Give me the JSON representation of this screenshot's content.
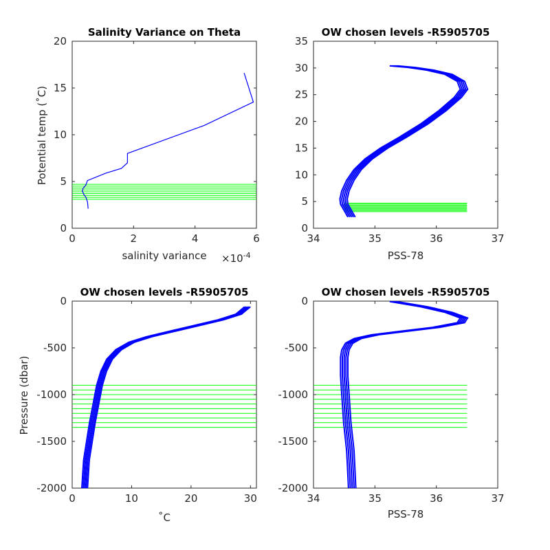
{
  "chart_data": [
    {
      "id": "salinity-variance",
      "type": "line",
      "title": "Salinity Variance on Theta",
      "xlabel": "salinity variance",
      "x_exponent": "×10",
      "x_exponent_power": "-4",
      "ylabel": "Potential temp (˚C)",
      "xlim": [
        0,
        6
      ],
      "ylim": [
        0,
        20
      ],
      "xticks": [
        0,
        2,
        4,
        6
      ],
      "yticks": [
        0,
        5,
        10,
        15,
        20
      ],
      "line_color": "#0000ff",
      "level_color": "#00ff00",
      "series": [
        {
          "x": [
            0.52,
            0.5,
            0.45,
            0.38,
            0.33,
            0.36,
            0.44,
            0.5,
            0.8,
            1.1,
            1.6,
            1.8,
            1.8,
            4.3,
            5.9,
            5.6
          ],
          "y": [
            2.1,
            2.8,
            3.3,
            3.6,
            4.0,
            4.3,
            4.6,
            5.1,
            5.5,
            5.9,
            6.4,
            7.0,
            8.0,
            11.0,
            13.5,
            16.6
          ]
        }
      ],
      "levels_y": [
        3.1,
        3.3,
        3.5,
        3.7,
        3.9,
        4.1,
        4.3,
        4.5,
        4.7
      ],
      "levels_x": [
        0,
        6
      ]
    },
    {
      "id": "theta-vs-salinity",
      "type": "line",
      "title": "OW chosen levels -R5905705",
      "xlabel": "PSS-78",
      "ylabel": "",
      "xlim": [
        34,
        37
      ],
      "ylim": [
        0,
        35
      ],
      "xticks": [
        34,
        35,
        36,
        37
      ],
      "yticks": [
        0,
        5,
        10,
        15,
        20,
        25,
        30,
        35
      ],
      "line_color": "#0000ff",
      "level_color": "#00ff00",
      "series": [
        {
          "x": [
            34.62,
            34.55,
            34.5,
            34.49,
            34.52,
            34.6,
            34.72,
            34.9,
            35.15,
            35.45,
            35.8,
            36.1,
            36.35,
            36.45,
            36.4,
            36.2,
            35.9,
            35.6,
            35.3
          ],
          "y": [
            2.1,
            3.5,
            4.5,
            5.5,
            7,
            9,
            11,
            13,
            15,
            17,
            19.5,
            22,
            24.5,
            26,
            27.5,
            28.8,
            29.6,
            30.1,
            30.4
          ]
        }
      ],
      "levels_y": [
        3.1,
        3.3,
        3.5,
        3.7,
        3.9,
        4.1,
        4.3,
        4.5,
        4.7
      ],
      "levels_x": [
        34.5,
        36.5
      ]
    },
    {
      "id": "pressure-vs-temperature",
      "type": "line",
      "title": "OW chosen levels -R5905705",
      "xlabel": "˚C",
      "ylabel": "Pressure (dbar)",
      "xlim": [
        0,
        31
      ],
      "ylim": [
        -2000,
        0
      ],
      "xticks": [
        0,
        10,
        20,
        30
      ],
      "yticks": [
        0,
        -500,
        -1000,
        -1500,
        -2000
      ],
      "line_color": "#0000ff",
      "level_color": "#00ff00",
      "series": [
        {
          "x": [
            2.1,
            2.4,
            2.9,
            3.4,
            4.0,
            4.6,
            5.3,
            6.3,
            7.8,
            10,
            13,
            17,
            21,
            25,
            28,
            29.5
          ],
          "y": [
            -2000,
            -1700,
            -1500,
            -1300,
            -1100,
            -900,
            -750,
            -620,
            -520,
            -440,
            -380,
            -320,
            -260,
            -200,
            -140,
            -60
          ]
        }
      ],
      "levels_y": [
        -900,
        -950,
        -1000,
        -1050,
        -1100,
        -1150,
        -1200,
        -1250,
        -1300,
        -1350
      ],
      "levels_x": [
        0,
        31
      ]
    },
    {
      "id": "pressure-vs-salinity",
      "type": "line",
      "title": "OW chosen levels -R5905705",
      "xlabel": "PSS-78",
      "ylabel": "",
      "xlim": [
        34,
        37
      ],
      "ylim": [
        -2000,
        0
      ],
      "xticks": [
        34,
        35,
        36,
        37
      ],
      "yticks": [
        0,
        -500,
        -1000,
        -1500,
        -2000
      ],
      "line_color": "#0000ff",
      "level_color": "#00ff00",
      "series": [
        {
          "x": [
            34.63,
            34.6,
            34.55,
            34.52,
            34.5,
            34.5,
            34.52,
            34.58,
            34.72,
            35.0,
            35.5,
            36.0,
            36.4,
            36.45,
            36.2,
            35.8,
            35.3
          ],
          "y": [
            -2000,
            -1600,
            -1300,
            -1000,
            -800,
            -600,
            -520,
            -450,
            -400,
            -360,
            -320,
            -280,
            -230,
            -180,
            -120,
            -60,
            -5
          ]
        }
      ],
      "levels_y": [
        -900,
        -950,
        -1000,
        -1050,
        -1100,
        -1150,
        -1200,
        -1250,
        -1300,
        -1350
      ],
      "levels_x": [
        34,
        36.5
      ]
    }
  ]
}
